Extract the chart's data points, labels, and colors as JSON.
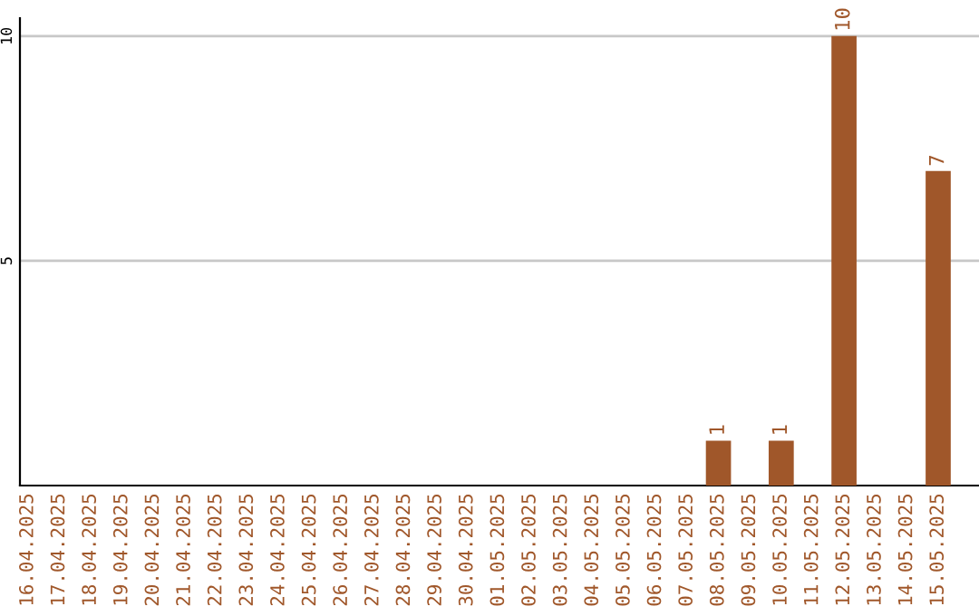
{
  "chart_data": {
    "type": "bar",
    "categories": [
      "16.04.2025",
      "17.04.2025",
      "18.04.2025",
      "19.04.2025",
      "20.04.2025",
      "21.04.2025",
      "22.04.2025",
      "23.04.2025",
      "24.04.2025",
      "25.04.2025",
      "26.04.2025",
      "27.04.2025",
      "28.04.2025",
      "29.04.2025",
      "30.04.2025",
      "01.05.2025",
      "02.05.2025",
      "03.05.2025",
      "04.05.2025",
      "05.05.2025",
      "06.05.2025",
      "07.05.2025",
      "08.05.2025",
      "09.05.2025",
      "10.05.2025",
      "11.05.2025",
      "12.05.2025",
      "13.05.2025",
      "14.05.2025",
      "15.05.2025"
    ],
    "values": [
      0,
      0,
      0,
      0,
      0,
      0,
      0,
      0,
      0,
      0,
      0,
      0,
      0,
      0,
      0,
      0,
      0,
      0,
      0,
      0,
      0,
      0,
      1,
      0,
      1,
      0,
      10,
      0,
      0,
      7
    ],
    "value_labels": [
      null,
      null,
      null,
      null,
      null,
      null,
      null,
      null,
      null,
      null,
      null,
      null,
      null,
      null,
      null,
      null,
      null,
      null,
      null,
      null,
      null,
      null,
      "1",
      null,
      "1",
      null,
      "10",
      null,
      null,
      "7"
    ],
    "color": "#a0572a",
    "ylim": [
      0,
      10.4
    ],
    "yticks": [
      5,
      10
    ],
    "grid": "y"
  }
}
